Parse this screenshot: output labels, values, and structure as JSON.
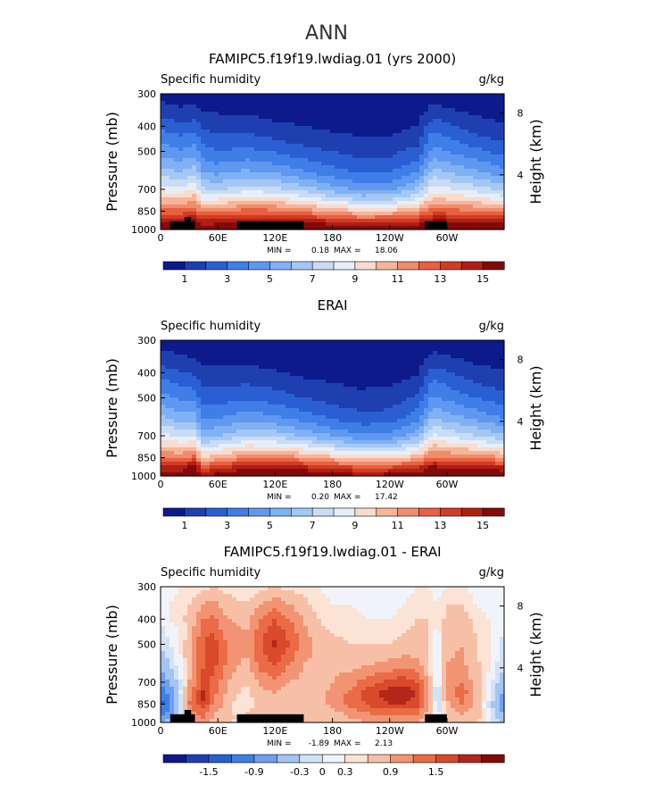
{
  "page_title": "ANN",
  "chart_data": [
    {
      "type": "heatmap",
      "title": "FAMIPC5.f19f19.lwdiag.01 (yrs 2000)",
      "subtitle_left": "Specific humidity",
      "units": "g/kg",
      "ylabel": "Pressure (mb)",
      "ylabel_right": "Height (km)",
      "x_ticks": [
        "0",
        "60E",
        "120E",
        "180",
        "120W",
        "60W"
      ],
      "y_ticks": [
        "300",
        "400",
        "500",
        "700",
        "850",
        "1000"
      ],
      "y_ticks_right": [
        "8",
        "4"
      ],
      "min_label": "MIN =",
      "min": "0.18",
      "max_label": "MAX =",
      "max": "18.06",
      "colorbar_labels": [
        "1",
        "3",
        "5",
        "7",
        "9",
        "11",
        "13",
        "15"
      ],
      "colorbar_colors": [
        "#0c1a8c",
        "#1e3fb0",
        "#2a5fd3",
        "#3f7ee8",
        "#5e98f0",
        "#7fb1f4",
        "#a4c8f6",
        "#c8dcf5",
        "#e8eef8",
        "#f9dccd",
        "#f6b59a",
        "#f08b6c",
        "#e8603f",
        "#d23b24",
        "#b01f14",
        "#820a0a"
      ],
      "clevels": [
        1,
        2,
        3,
        4,
        5,
        6,
        7,
        8,
        9,
        10,
        11,
        12,
        13,
        14,
        15
      ],
      "x_range": [
        0,
        360
      ],
      "pressure_range": [
        300,
        1000
      ],
      "x": [
        0,
        20,
        35,
        45,
        60,
        90,
        120,
        150,
        180,
        210,
        240,
        270,
        285,
        300,
        330,
        360
      ],
      "pressure": [
        300,
        350,
        400,
        450,
        500,
        600,
        700,
        775,
        850,
        925,
        1000
      ],
      "values": [
        [
          0.6,
          0.5,
          0.5,
          0.4,
          0.4,
          0.3,
          0.3,
          0.3,
          0.3,
          0.3,
          0.3,
          0.3,
          0.5,
          0.4,
          0.3,
          0.3
        ],
        [
          1.5,
          1.2,
          1.3,
          1.0,
          0.9,
          0.8,
          0.6,
          0.5,
          0.5,
          0.4,
          0.4,
          0.6,
          1.4,
          1.2,
          0.8,
          0.6
        ],
        [
          2.8,
          2.3,
          2.5,
          1.8,
          1.6,
          1.6,
          1.2,
          1.0,
          0.8,
          0.7,
          0.7,
          1.0,
          2.7,
          2.3,
          1.5,
          1.1
        ],
        [
          3.8,
          3.3,
          3.6,
          2.6,
          2.3,
          2.4,
          2.0,
          1.6,
          1.3,
          1.1,
          1.1,
          1.6,
          3.6,
          3.2,
          2.4,
          1.8
        ],
        [
          4.6,
          4.1,
          4.5,
          3.4,
          3.0,
          3.3,
          2.9,
          2.4,
          2.0,
          1.6,
          1.7,
          2.4,
          4.4,
          4.0,
          3.3,
          2.6
        ],
        [
          6.5,
          6.0,
          6.6,
          5.0,
          4.7,
          5.2,
          4.8,
          4.1,
          3.4,
          2.8,
          2.9,
          4.0,
          6.4,
          5.9,
          5.2,
          4.3
        ],
        [
          8.6,
          8.3,
          9.0,
          7.1,
          6.9,
          7.6,
          7.3,
          6.5,
          5.5,
          4.7,
          4.8,
          6.2,
          8.6,
          8.2,
          7.6,
          6.6
        ],
        [
          10.5,
          10.4,
          11.0,
          9.2,
          9.3,
          10.0,
          9.8,
          9.0,
          8.0,
          7.1,
          7.2,
          8.5,
          10.6,
          10.3,
          9.8,
          9.0
        ],
        [
          12.3,
          12.3,
          12.8,
          11.5,
          11.7,
          12.4,
          12.3,
          11.6,
          10.8,
          10.0,
          10.1,
          11.0,
          12.6,
          12.4,
          12.1,
          11.5
        ],
        [
          14.6,
          14.6,
          15.2,
          14.1,
          14.4,
          15.0,
          15.0,
          14.5,
          13.9,
          13.2,
          13.4,
          14.0,
          15.2,
          15.0,
          14.9,
          14.4
        ],
        [
          16.0,
          16.2,
          16.8,
          15.8,
          16.3,
          17.0,
          17.2,
          16.9,
          16.4,
          15.8,
          16.0,
          16.5,
          17.4,
          17.2,
          17.3,
          16.8
        ]
      ],
      "masked": [
        {
          "x0": 10,
          "x1": 36,
          "p_top": 930
        },
        {
          "x0": 25,
          "x1": 32,
          "p_top": 895
        },
        {
          "x0": 80,
          "x1": 150,
          "p_top": 930
        },
        {
          "x0": 277,
          "x1": 300,
          "p_top": 930
        }
      ]
    },
    {
      "type": "heatmap",
      "title": "ERAI",
      "subtitle_left": "Specific humidity",
      "units": "g/kg",
      "ylabel": "Pressure (mb)",
      "ylabel_right": "Height (km)",
      "x_ticks": [
        "0",
        "60E",
        "120E",
        "180",
        "120W",
        "60W"
      ],
      "y_ticks": [
        "300",
        "400",
        "500",
        "700",
        "850",
        "1000"
      ],
      "y_ticks_right": [
        "8",
        "4"
      ],
      "min_label": "MIN =",
      "min": "0.20",
      "max_label": "MAX =",
      "max": "17.42",
      "colorbar_labels": [
        "1",
        "3",
        "5",
        "7",
        "9",
        "11",
        "13",
        "15"
      ],
      "colorbar_colors": [
        "#0c1a8c",
        "#1e3fb0",
        "#2a5fd3",
        "#3f7ee8",
        "#5e98f0",
        "#7fb1f4",
        "#a4c8f6",
        "#c8dcf5",
        "#e8eef8",
        "#f9dccd",
        "#f6b59a",
        "#f08b6c",
        "#e8603f",
        "#d23b24",
        "#b01f14",
        "#820a0a"
      ],
      "clevels": [
        1,
        2,
        3,
        4,
        5,
        6,
        7,
        8,
        9,
        10,
        11,
        12,
        13,
        14,
        15
      ],
      "x_range": [
        0,
        360
      ],
      "pressure_range": [
        300,
        1000
      ],
      "x": [
        0,
        20,
        35,
        45,
        60,
        90,
        120,
        150,
        180,
        210,
        240,
        270,
        285,
        300,
        330,
        360
      ],
      "pressure": [
        300,
        350,
        400,
        450,
        500,
        600,
        700,
        775,
        850,
        925,
        1000
      ],
      "values": [
        [
          0.6,
          0.5,
          0.4,
          0.3,
          0.3,
          0.3,
          0.3,
          0.2,
          0.2,
          0.2,
          0.2,
          0.3,
          0.5,
          0.4,
          0.3,
          0.3
        ],
        [
          1.4,
          1.1,
          1.0,
          0.7,
          0.7,
          0.7,
          0.5,
          0.4,
          0.4,
          0.4,
          0.4,
          0.6,
          1.3,
          1.1,
          0.7,
          0.6
        ],
        [
          2.6,
          2.1,
          1.9,
          1.3,
          1.3,
          1.4,
          1.1,
          0.8,
          0.7,
          0.6,
          0.6,
          0.9,
          2.5,
          2.1,
          1.4,
          1.1
        ],
        [
          3.6,
          3.0,
          2.8,
          1.9,
          1.9,
          2.1,
          1.8,
          1.3,
          1.1,
          0.9,
          1.0,
          1.5,
          3.4,
          3.0,
          2.2,
          1.7
        ],
        [
          4.4,
          3.8,
          3.6,
          2.5,
          2.5,
          2.9,
          2.5,
          2.0,
          1.6,
          1.3,
          1.4,
          2.2,
          4.2,
          3.8,
          3.0,
          2.4
        ],
        [
          6.3,
          5.6,
          5.5,
          3.9,
          4.0,
          4.7,
          4.3,
          3.6,
          2.9,
          2.4,
          2.5,
          3.7,
          6.1,
          5.6,
          4.8,
          4.0
        ],
        [
          8.4,
          7.8,
          7.8,
          5.8,
          6.0,
          7.0,
          6.7,
          5.9,
          5.0,
          4.2,
          4.3,
          5.8,
          8.3,
          7.8,
          7.1,
          6.2
        ],
        [
          10.3,
          9.9,
          10.2,
          7.8,
          8.3,
          9.4,
          9.2,
          8.5,
          7.5,
          6.6,
          6.7,
          8.1,
          10.4,
          10.0,
          9.4,
          8.6
        ],
        [
          12.1,
          11.9,
          12.4,
          9.9,
          10.6,
          11.8,
          11.8,
          11.2,
          10.3,
          9.5,
          9.6,
          10.6,
          12.3,
          12.0,
          11.8,
          11.1
        ],
        [
          14.4,
          14.3,
          15.6,
          12.7,
          13.6,
          14.6,
          14.7,
          14.2,
          13.5,
          12.8,
          13.0,
          13.7,
          15.3,
          14.7,
          14.6,
          14.0
        ],
        [
          15.8,
          15.9,
          17.0,
          14.6,
          15.9,
          16.6,
          16.8,
          16.5,
          16.0,
          15.4,
          15.6,
          16.2,
          17.2,
          16.9,
          16.9,
          16.4
        ]
      ],
      "masked": []
    },
    {
      "type": "heatmap",
      "title": "FAMIPC5.f19f19.lwdiag.01 - ERAI",
      "subtitle_left": "Specific humidity",
      "units": "g/kg",
      "ylabel": "Pressure (mb)",
      "ylabel_right": "Height (km)",
      "x_ticks": [
        "0",
        "60E",
        "120E",
        "180",
        "120W",
        "60W"
      ],
      "y_ticks": [
        "300",
        "400",
        "500",
        "700",
        "850",
        "1000"
      ],
      "y_ticks_right": [
        "8",
        "4"
      ],
      "min_label": "MIN =",
      "min": "-1.89",
      "max_label": "MAX =",
      "max": "2.13",
      "colorbar_labels": [
        "-1.5",
        "-0.9",
        "-0.3",
        "0",
        "0.3",
        "0.9",
        "1.5"
      ],
      "colorbar_colors": [
        "#0c1a8c",
        "#1e3fb0",
        "#2a5fd3",
        "#3f7ee8",
        "#6e9ff0",
        "#a4c4f3",
        "#d2e2f7",
        "#f0f4fa",
        "#fbe3d6",
        "#f7c0a6",
        "#f29473",
        "#ea6b45",
        "#d84a2a",
        "#b5261a",
        "#820a0a"
      ],
      "clevels": [
        -1.8,
        -1.5,
        -1.2,
        -0.9,
        -0.6,
        -0.3,
        -0.1,
        0.1,
        0.3,
        0.6,
        0.9,
        1.2,
        1.5,
        1.8
      ],
      "x_range": [
        0,
        360
      ],
      "pressure_range": [
        300,
        1000
      ],
      "x": [
        0,
        10,
        20,
        30,
        45,
        55,
        65,
        75,
        90,
        105,
        120,
        135,
        150,
        165,
        180,
        200,
        220,
        240,
        255,
        270,
        280,
        290,
        300,
        315,
        330,
        345,
        360
      ],
      "pressure": [
        300,
        350,
        400,
        450,
        500,
        600,
        700,
        775,
        850,
        925,
        1000
      ],
      "values": [
        [
          0.0,
          0.0,
          0.1,
          0.1,
          0.2,
          0.3,
          0.2,
          0.2,
          0.1,
          0.2,
          0.3,
          0.2,
          0.2,
          0.1,
          0.0,
          0.0,
          0.0,
          0.0,
          0.0,
          0.1,
          0.1,
          0.0,
          0.1,
          0.2,
          0.0,
          0.0,
          0.0
        ],
        [
          0.0,
          0.1,
          0.2,
          0.3,
          0.6,
          0.7,
          0.5,
          0.4,
          0.3,
          0.6,
          0.8,
          0.6,
          0.4,
          0.2,
          0.1,
          0.1,
          0.0,
          0.0,
          0.1,
          0.2,
          0.2,
          0.1,
          0.3,
          0.3,
          0.1,
          0.0,
          0.0
        ],
        [
          -0.1,
          0.1,
          0.2,
          0.4,
          0.9,
          1.0,
          0.7,
          0.6,
          0.5,
          0.9,
          1.2,
          0.9,
          0.6,
          0.3,
          0.2,
          0.2,
          0.1,
          0.1,
          0.2,
          0.3,
          0.3,
          0.1,
          0.4,
          0.5,
          0.2,
          0.1,
          0.0
        ],
        [
          -0.2,
          0.0,
          0.1,
          0.4,
          1.1,
          1.2,
          0.9,
          0.7,
          0.6,
          1.1,
          1.4,
          1.1,
          0.7,
          0.4,
          0.3,
          0.2,
          0.2,
          0.2,
          0.3,
          0.4,
          0.3,
          0.0,
          0.5,
          0.5,
          0.3,
          0.1,
          -0.1
        ],
        [
          -0.3,
          -0.1,
          0.1,
          0.5,
          1.2,
          1.4,
          1.0,
          0.8,
          0.7,
          1.2,
          1.6,
          1.2,
          0.8,
          0.5,
          0.4,
          0.3,
          0.3,
          0.3,
          0.4,
          0.4,
          0.3,
          -0.1,
          0.5,
          0.6,
          0.3,
          0.1,
          -0.2
        ],
        [
          -0.5,
          -0.3,
          0.0,
          0.5,
          1.2,
          1.3,
          1.0,
          0.7,
          0.5,
          1.0,
          1.2,
          0.9,
          0.6,
          0.5,
          0.5,
          0.5,
          0.6,
          0.7,
          0.8,
          0.7,
          0.4,
          -0.2,
          0.6,
          0.7,
          0.4,
          0.1,
          -0.3
        ],
        [
          -0.8,
          -0.6,
          -0.2,
          0.6,
          1.3,
          1.1,
          0.8,
          0.5,
          0.3,
          0.7,
          0.8,
          0.6,
          0.5,
          0.5,
          0.6,
          0.8,
          1.1,
          1.3,
          1.4,
          1.2,
          0.6,
          -0.3,
          0.7,
          0.9,
          0.5,
          0.0,
          -0.5
        ],
        [
          -1.1,
          -0.8,
          -0.2,
          0.8,
          1.6,
          1.0,
          0.7,
          0.4,
          0.2,
          0.5,
          0.6,
          0.4,
          0.4,
          0.4,
          0.7,
          1.0,
          1.4,
          1.7,
          1.8,
          1.5,
          0.7,
          -0.4,
          0.7,
          1.1,
          0.6,
          -0.1,
          -0.7
        ],
        [
          -1.3,
          -1.0,
          -0.3,
          0.9,
          1.5,
          0.9,
          0.6,
          0.3,
          0.2,
          0.4,
          0.5,
          0.4,
          0.3,
          0.4,
          0.7,
          1.0,
          1.3,
          1.5,
          1.5,
          1.3,
          0.6,
          -0.3,
          0.5,
          0.9,
          0.5,
          -0.2,
          -0.9
        ],
        [
          -1.0,
          -0.8,
          -0.2,
          0.7,
          1.0,
          0.6,
          0.4,
          0.3,
          0.3,
          0.4,
          0.5,
          0.4,
          0.3,
          0.4,
          0.5,
          0.7,
          0.9,
          1.0,
          1.0,
          0.9,
          0.5,
          -0.2,
          0.3,
          0.6,
          0.5,
          -0.1,
          -0.6
        ],
        [
          -0.6,
          -0.5,
          0.0,
          0.5,
          0.8,
          0.5,
          0.4,
          0.3,
          0.3,
          0.4,
          0.5,
          0.4,
          0.3,
          0.3,
          0.4,
          0.5,
          0.6,
          0.7,
          0.7,
          0.6,
          0.4,
          0.0,
          0.3,
          0.5,
          0.4,
          0.0,
          -0.4
        ]
      ],
      "masked": [
        {
          "x0": 10,
          "x1": 36,
          "p_top": 930
        },
        {
          "x0": 25,
          "x1": 32,
          "p_top": 895
        },
        {
          "x0": 80,
          "x1": 150,
          "p_top": 930
        },
        {
          "x0": 277,
          "x1": 300,
          "p_top": 930
        }
      ]
    }
  ]
}
